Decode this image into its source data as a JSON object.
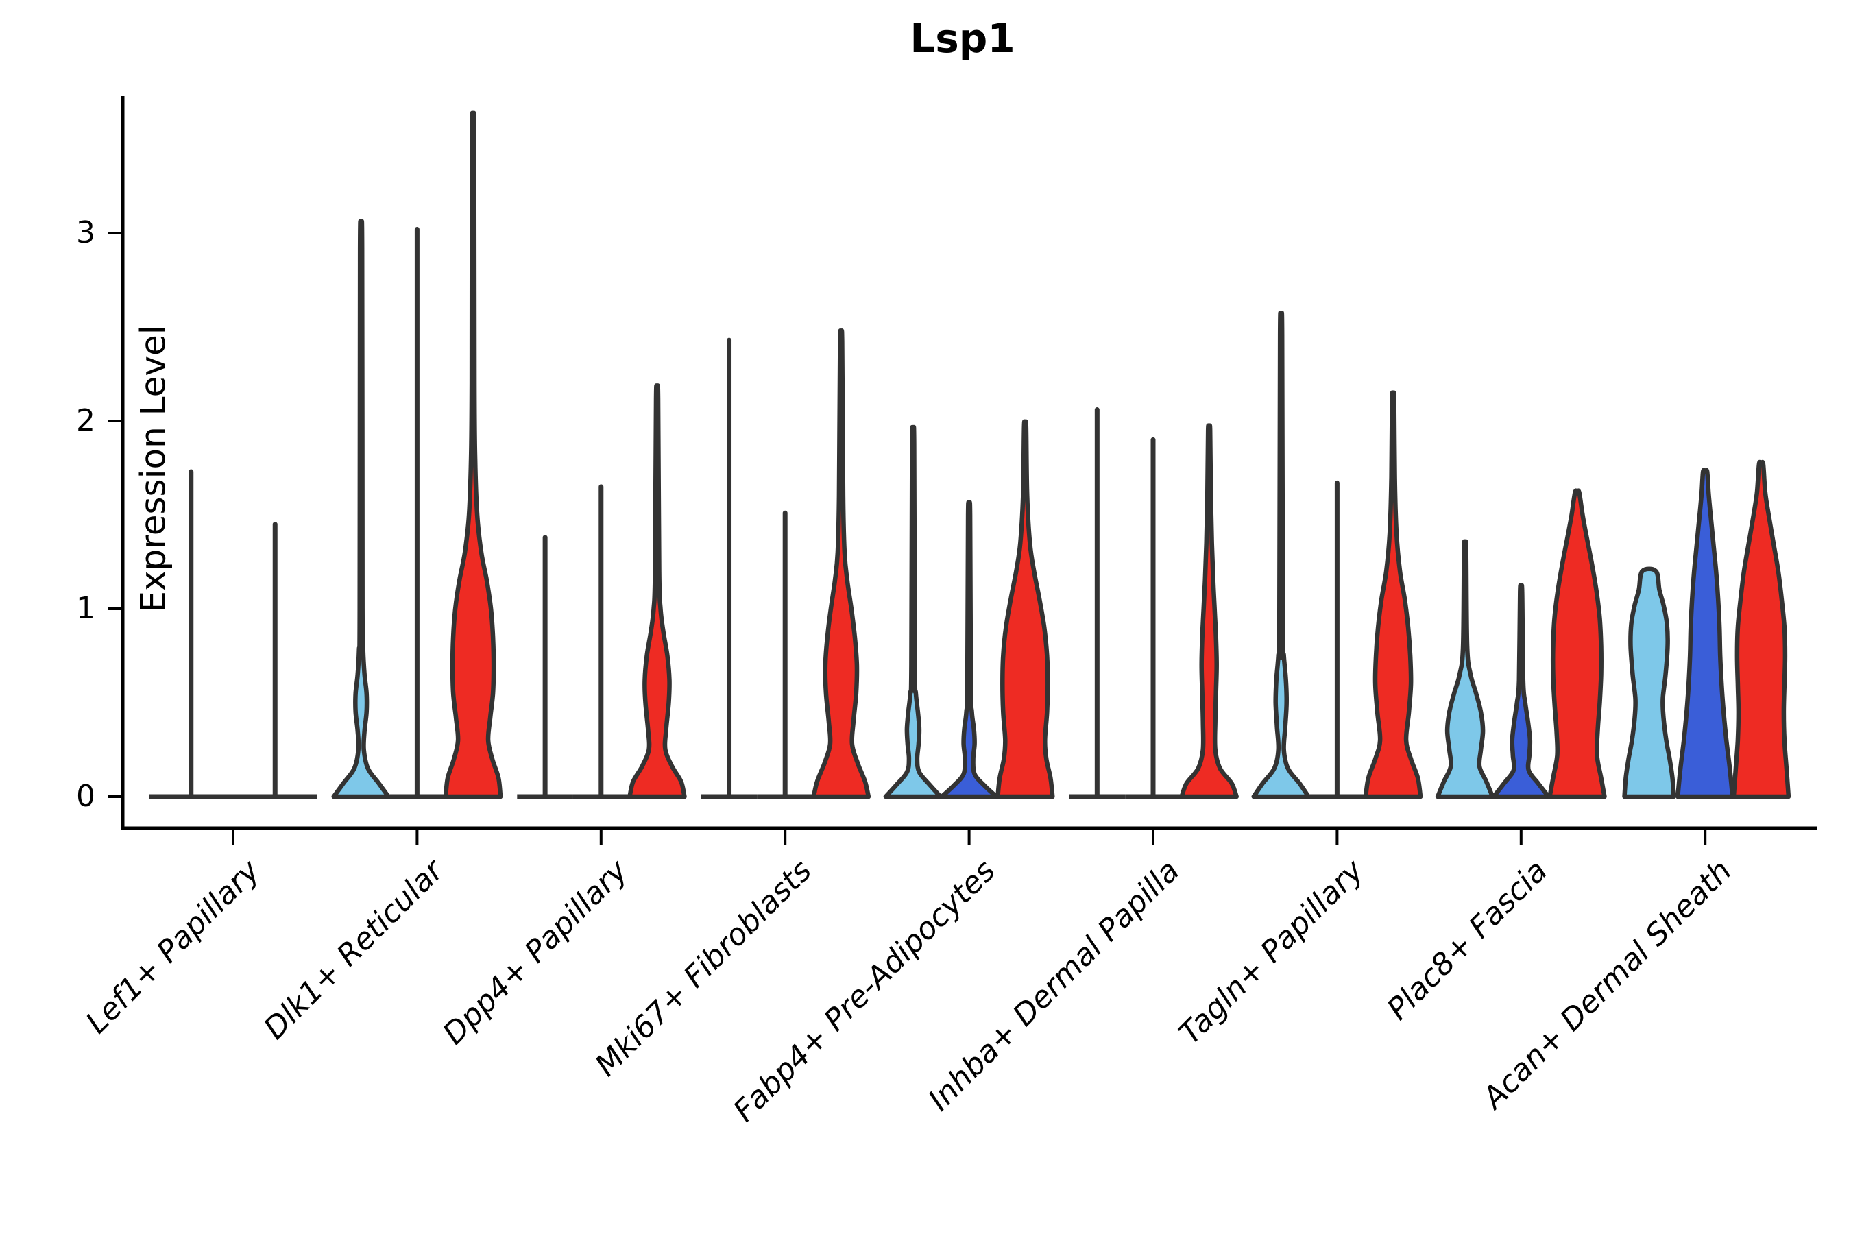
{
  "title": "Lsp1",
  "axes": {
    "y_label": "Expression Level",
    "y_tick_labels": [
      "0",
      "1",
      "2",
      "3"
    ]
  },
  "chart_data": {
    "type": "violin",
    "title": "Lsp1",
    "ylabel": "Expression Level",
    "xlabel": "",
    "yticks": [
      0,
      1,
      2,
      3
    ],
    "ylim": [
      -0.17,
      3.73
    ],
    "grid": false,
    "legend": "none",
    "categories": [
      "Lef1+ Papillary",
      "Dlk1+ Reticular",
      "Dpp4+ Papillary",
      "Mki67+ Fibroblasts",
      "Fabp4+ Pre-Adipocytes",
      "Inhba+ Dermal Papilla",
      "Tagln+ Papillary",
      "Plac8+ Fascia",
      "Acan+ Dermal Sheath"
    ],
    "colors": {
      "light_blue": "#7EC8E9",
      "dark_blue": "#3A5ED8",
      "red": "#EE2B23",
      "outline": "#333333",
      "axis": "#000000"
    },
    "groups": [
      {
        "category": "Lef1+ Papillary",
        "violins": [
          {
            "split": "light_blue",
            "kind": "spike",
            "max": 1.73
          },
          {
            "split": "red",
            "kind": "spike",
            "max": 1.45
          }
        ]
      },
      {
        "category": "Dlk1+ Reticular",
        "violins": [
          {
            "split": "light_blue",
            "kind": "body",
            "max": 2.92,
            "flat_top": false,
            "profile": [
              [
                0,
                40
              ],
              [
                0.07,
                26
              ],
              [
                0.15,
                10
              ],
              [
                0.25,
                4
              ],
              [
                0.35,
                5
              ],
              [
                0.45,
                8
              ],
              [
                0.55,
                8
              ],
              [
                0.65,
                5
              ],
              [
                0.78,
                3
              ],
              [
                1.0,
                2
              ],
              [
                2.92,
                1.5
              ]
            ]
          },
          {
            "split": "dark_blue",
            "kind": "spike",
            "max": 3.02
          },
          {
            "split": "red",
            "kind": "body",
            "max": 3.54,
            "flat_top": false,
            "profile": [
              [
                0,
                40
              ],
              [
                0.1,
                37
              ],
              [
                0.2,
                28
              ],
              [
                0.3,
                22
              ],
              [
                0.42,
                25
              ],
              [
                0.55,
                29
              ],
              [
                0.7,
                30
              ],
              [
                0.85,
                29
              ],
              [
                1.0,
                26
              ],
              [
                1.15,
                20
              ],
              [
                1.3,
                12
              ],
              [
                1.5,
                6
              ],
              [
                1.8,
                3
              ],
              [
                2.2,
                2
              ],
              [
                3.54,
                1.5
              ]
            ]
          }
        ]
      },
      {
        "category": "Dpp4+ Papillary",
        "violins": [
          {
            "split": "light_blue",
            "kind": "spike",
            "max": 1.38
          },
          {
            "split": "dark_blue",
            "kind": "spike",
            "max": 1.65
          },
          {
            "split": "red",
            "kind": "body",
            "max": 2.12,
            "flat_top": false,
            "profile": [
              [
                0,
                40
              ],
              [
                0.08,
                35
              ],
              [
                0.16,
                22
              ],
              [
                0.25,
                12
              ],
              [
                0.35,
                13
              ],
              [
                0.5,
                17
              ],
              [
                0.62,
                18
              ],
              [
                0.75,
                15
              ],
              [
                0.88,
                9
              ],
              [
                1.0,
                5
              ],
              [
                1.2,
                3
              ],
              [
                2.12,
                1.5
              ]
            ]
          }
        ]
      },
      {
        "category": "Mki67+ Fibroblasts",
        "violins": [
          {
            "split": "light_blue",
            "kind": "spike",
            "max": 2.43
          },
          {
            "split": "dark_blue",
            "kind": "spike",
            "max": 1.51
          },
          {
            "split": "red",
            "kind": "body",
            "max": 2.42,
            "flat_top": false,
            "profile": [
              [
                0,
                40
              ],
              [
                0.08,
                35
              ],
              [
                0.18,
                24
              ],
              [
                0.28,
                16
              ],
              [
                0.4,
                18
              ],
              [
                0.55,
                22
              ],
              [
                0.7,
                23
              ],
              [
                0.85,
                20
              ],
              [
                1.0,
                15
              ],
              [
                1.15,
                9
              ],
              [
                1.3,
                5
              ],
              [
                1.6,
                3
              ],
              [
                2.42,
                1.5
              ]
            ]
          }
        ]
      },
      {
        "category": "Fabp4+ Pre-Adipocytes",
        "violins": [
          {
            "split": "light_blue",
            "kind": "body",
            "max": 1.88,
            "flat_top": false,
            "profile": [
              [
                0,
                40
              ],
              [
                0.06,
                25
              ],
              [
                0.13,
                9
              ],
              [
                0.2,
                6
              ],
              [
                0.28,
                8
              ],
              [
                0.36,
                9
              ],
              [
                0.45,
                7
              ],
              [
                0.55,
                4
              ],
              [
                0.7,
                2.5
              ],
              [
                1.88,
                1.5
              ]
            ]
          },
          {
            "split": "dark_blue",
            "kind": "body",
            "max": 1.5,
            "flat_top": false,
            "profile": [
              [
                0,
                40
              ],
              [
                0.06,
                22
              ],
              [
                0.12,
                8
              ],
              [
                0.2,
                6
              ],
              [
                0.28,
                8
              ],
              [
                0.36,
                7
              ],
              [
                0.45,
                4
              ],
              [
                0.6,
                2.5
              ],
              [
                1.5,
                1.5
              ]
            ]
          },
          {
            "split": "red",
            "kind": "body",
            "max": 1.97,
            "flat_top": false,
            "profile": [
              [
                0,
                40
              ],
              [
                0.1,
                37
              ],
              [
                0.2,
                31
              ],
              [
                0.3,
                29
              ],
              [
                0.45,
                32
              ],
              [
                0.6,
                33
              ],
              [
                0.75,
                32
              ],
              [
                0.9,
                28
              ],
              [
                1.05,
                21
              ],
              [
                1.2,
                13
              ],
              [
                1.35,
                7
              ],
              [
                1.6,
                3
              ],
              [
                1.97,
                1.5
              ]
            ]
          }
        ]
      },
      {
        "category": "Inhba+ Dermal Papilla",
        "violins": [
          {
            "split": "light_blue",
            "kind": "spike",
            "max": 2.06
          },
          {
            "split": "dark_blue",
            "kind": "spike",
            "max": 1.9
          },
          {
            "split": "red",
            "kind": "body",
            "max": 1.95,
            "flat_top": false,
            "profile": [
              [
                0,
                40
              ],
              [
                0.07,
                33
              ],
              [
                0.15,
                16
              ],
              [
                0.25,
                9
              ],
              [
                0.4,
                9
              ],
              [
                0.55,
                10
              ],
              [
                0.7,
                11
              ],
              [
                0.85,
                10
              ],
              [
                1.0,
                8
              ],
              [
                1.15,
                6
              ],
              [
                1.35,
                4
              ],
              [
                1.6,
                2.5
              ],
              [
                1.95,
                1.5
              ]
            ]
          }
        ]
      },
      {
        "category": "Tagln+ Papillary",
        "violins": [
          {
            "split": "light_blue",
            "kind": "body",
            "max": 2.46,
            "flat_top": false,
            "profile": [
              [
                0,
                40
              ],
              [
                0.07,
                27
              ],
              [
                0.15,
                10
              ],
              [
                0.25,
                4
              ],
              [
                0.37,
                6
              ],
              [
                0.5,
                8
              ],
              [
                0.62,
                7
              ],
              [
                0.75,
                4
              ],
              [
                0.9,
                2.5
              ],
              [
                2.46,
                1.5
              ]
            ]
          },
          {
            "split": "dark_blue",
            "kind": "spike",
            "max": 1.67
          },
          {
            "split": "red",
            "kind": "body",
            "max": 2.12,
            "flat_top": false,
            "profile": [
              [
                0,
                40
              ],
              [
                0.1,
                36
              ],
              [
                0.2,
                26
              ],
              [
                0.3,
                19
              ],
              [
                0.45,
                23
              ],
              [
                0.6,
                26
              ],
              [
                0.75,
                25
              ],
              [
                0.9,
                22
              ],
              [
                1.05,
                17
              ],
              [
                1.2,
                10
              ],
              [
                1.4,
                5
              ],
              [
                1.7,
                2.5
              ],
              [
                2.12,
                1.5
              ]
            ]
          }
        ]
      },
      {
        "category": "Plac8+ Fascia",
        "violins": [
          {
            "split": "light_blue",
            "kind": "body",
            "max": 1.32,
            "flat_top": false,
            "profile": [
              [
                0,
                40
              ],
              [
                0.08,
                31
              ],
              [
                0.16,
                21
              ],
              [
                0.25,
                23
              ],
              [
                0.35,
                26
              ],
              [
                0.45,
                23
              ],
              [
                0.55,
                16
              ],
              [
                0.65,
                8
              ],
              [
                0.8,
                3
              ],
              [
                1.32,
                1.5
              ]
            ]
          },
          {
            "split": "dark_blue",
            "kind": "body",
            "max": 1.09,
            "flat_top": false,
            "profile": [
              [
                0,
                40
              ],
              [
                0.07,
                25
              ],
              [
                0.14,
                11
              ],
              [
                0.22,
                12
              ],
              [
                0.3,
                13
              ],
              [
                0.4,
                10
              ],
              [
                0.5,
                6
              ],
              [
                0.62,
                3
              ],
              [
                1.09,
                1.5
              ]
            ]
          },
          {
            "split": "red",
            "kind": "body",
            "max": 1.62,
            "flat_top": false,
            "profile": [
              [
                0,
                40
              ],
              [
                0.1,
                35
              ],
              [
                0.22,
                29
              ],
              [
                0.35,
                30
              ],
              [
                0.5,
                33
              ],
              [
                0.65,
                35
              ],
              [
                0.8,
                35
              ],
              [
                0.95,
                33
              ],
              [
                1.1,
                28
              ],
              [
                1.25,
                21
              ],
              [
                1.4,
                13
              ],
              [
                1.5,
                8
              ],
              [
                1.62,
                3
              ]
            ]
          }
        ]
      },
      {
        "category": "Acan+ Dermal Sheath",
        "violins": [
          {
            "split": "light_blue",
            "kind": "body",
            "max": 1.2,
            "flat_top": true,
            "profile": [
              [
                0,
                36
              ],
              [
                0.1,
                34
              ],
              [
                0.2,
                30
              ],
              [
                0.3,
                25
              ],
              [
                0.42,
                21
              ],
              [
                0.52,
                20
              ],
              [
                0.65,
                24
              ],
              [
                0.8,
                27
              ],
              [
                0.92,
                26
              ],
              [
                1.02,
                21
              ],
              [
                1.1,
                15
              ],
              [
                1.2,
                10
              ]
            ]
          },
          {
            "split": "dark_blue",
            "kind": "body",
            "max": 1.73,
            "flat_top": false,
            "profile": [
              [
                0,
                40
              ],
              [
                0.15,
                36
              ],
              [
                0.3,
                31
              ],
              [
                0.45,
                27
              ],
              [
                0.6,
                24
              ],
              [
                0.75,
                22
              ],
              [
                0.9,
                21
              ],
              [
                1.05,
                19
              ],
              [
                1.2,
                16
              ],
              [
                1.35,
                12
              ],
              [
                1.5,
                8
              ],
              [
                1.62,
                5
              ],
              [
                1.73,
                3
              ]
            ]
          },
          {
            "split": "red",
            "kind": "body",
            "max": 1.77,
            "flat_top": false,
            "profile": [
              [
                0,
                40
              ],
              [
                0.15,
                37
              ],
              [
                0.3,
                34
              ],
              [
                0.45,
                33
              ],
              [
                0.6,
                34
              ],
              [
                0.75,
                35
              ],
              [
                0.9,
                34
              ],
              [
                1.05,
                30
              ],
              [
                1.2,
                25
              ],
              [
                1.35,
                18
              ],
              [
                1.5,
                11
              ],
              [
                1.62,
                6
              ],
              [
                1.77,
                3
              ]
            ]
          }
        ]
      }
    ]
  }
}
